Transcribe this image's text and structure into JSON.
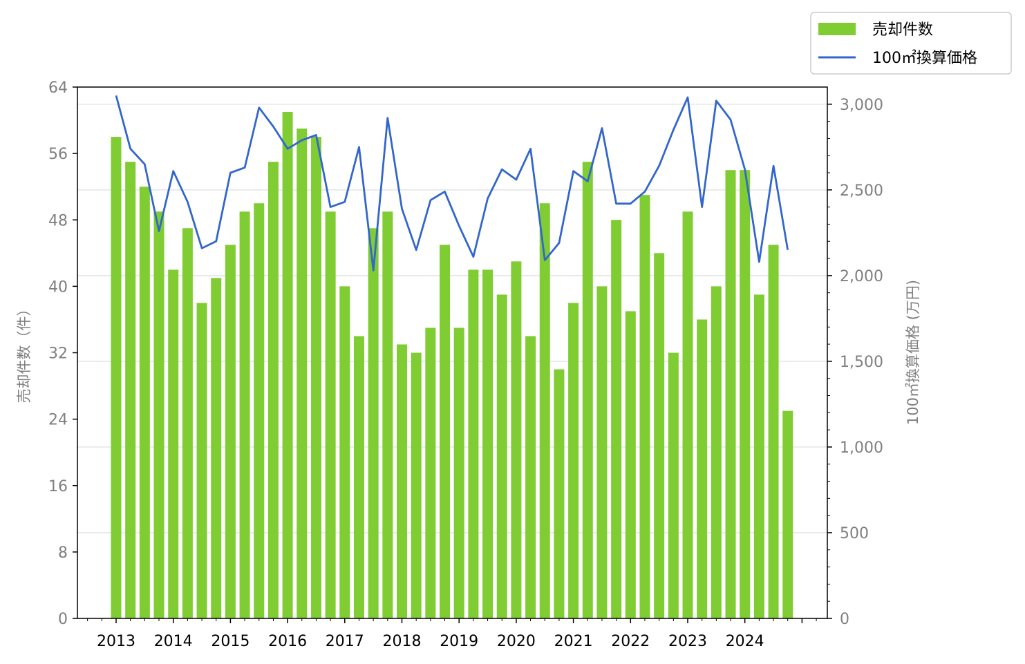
{
  "chart_data": {
    "type": "bar+line",
    "x_ticks": [
      "2013",
      "2014",
      "2015",
      "2016",
      "2017",
      "2018",
      "2019",
      "2020",
      "2021",
      "2022",
      "2023",
      "2024"
    ],
    "x_start_year": 2013,
    "quarters": [
      "2013Q1",
      "2013Q2",
      "2013Q3",
      "2013Q4",
      "2014Q1",
      "2014Q2",
      "2014Q3",
      "2014Q4",
      "2015Q1",
      "2015Q2",
      "2015Q3",
      "2015Q4",
      "2016Q1",
      "2016Q2",
      "2016Q3",
      "2016Q4",
      "2017Q1",
      "2017Q2",
      "2017Q3",
      "2017Q4",
      "2018Q1",
      "2018Q2",
      "2018Q3",
      "2018Q4",
      "2019Q1",
      "2019Q2",
      "2019Q3",
      "2019Q4",
      "2020Q1",
      "2020Q2",
      "2020Q3",
      "2020Q4",
      "2021Q1",
      "2021Q2",
      "2021Q3",
      "2021Q4",
      "2022Q1",
      "2022Q2",
      "2022Q3",
      "2022Q4",
      "2023Q1",
      "2023Q2",
      "2023Q3",
      "2023Q4",
      "2024Q1",
      "2024Q2",
      "2024Q3",
      "2024Q4"
    ],
    "series": [
      {
        "name": "売却件数",
        "kind": "bar",
        "axis": "left",
        "color": "#80cc33",
        "values": [
          58,
          55,
          52,
          49,
          42,
          47,
          38,
          41,
          45,
          49,
          50,
          55,
          61,
          59,
          58,
          49,
          40,
          34,
          47,
          49,
          33,
          32,
          35,
          45,
          35,
          42,
          42,
          39,
          43,
          34,
          50,
          30,
          38,
          55,
          40,
          48,
          37,
          51,
          44,
          32,
          49,
          36,
          40,
          54,
          54,
          39,
          45,
          25
        ]
      },
      {
        "name": "100㎡換算価格",
        "kind": "line",
        "axis": "right",
        "color": "#3366cc",
        "values": [
          3050,
          2740,
          2650,
          2260,
          2610,
          2430,
          2160,
          2200,
          2600,
          2630,
          2980,
          2870,
          2740,
          2790,
          2820,
          2400,
          2430,
          2750,
          2030,
          2920,
          2390,
          2150,
          2440,
          2490,
          2290,
          2110,
          2450,
          2620,
          2560,
          2740,
          2090,
          2190,
          2610,
          2550,
          2860,
          2420,
          2420,
          2490,
          2640,
          2850,
          3040,
          2400,
          3020,
          2910,
          2620,
          2080,
          2640,
          2150
        ]
      }
    ],
    "y_left": {
      "label": "売却件数（件）",
      "ticks": [
        "0",
        "8",
        "16",
        "24",
        "32",
        "40",
        "48",
        "56",
        "64"
      ],
      "range": [
        0,
        64
      ]
    },
    "y_right": {
      "label": "100㎡換算価格 (万円)",
      "ticks": [
        "0",
        "500",
        "1,000",
        "1,500",
        "2,000",
        "2,500",
        "3,000"
      ],
      "range": [
        0,
        3100
      ]
    },
    "grid": "horizontal (right axis)",
    "legend_position": "top-right"
  }
}
